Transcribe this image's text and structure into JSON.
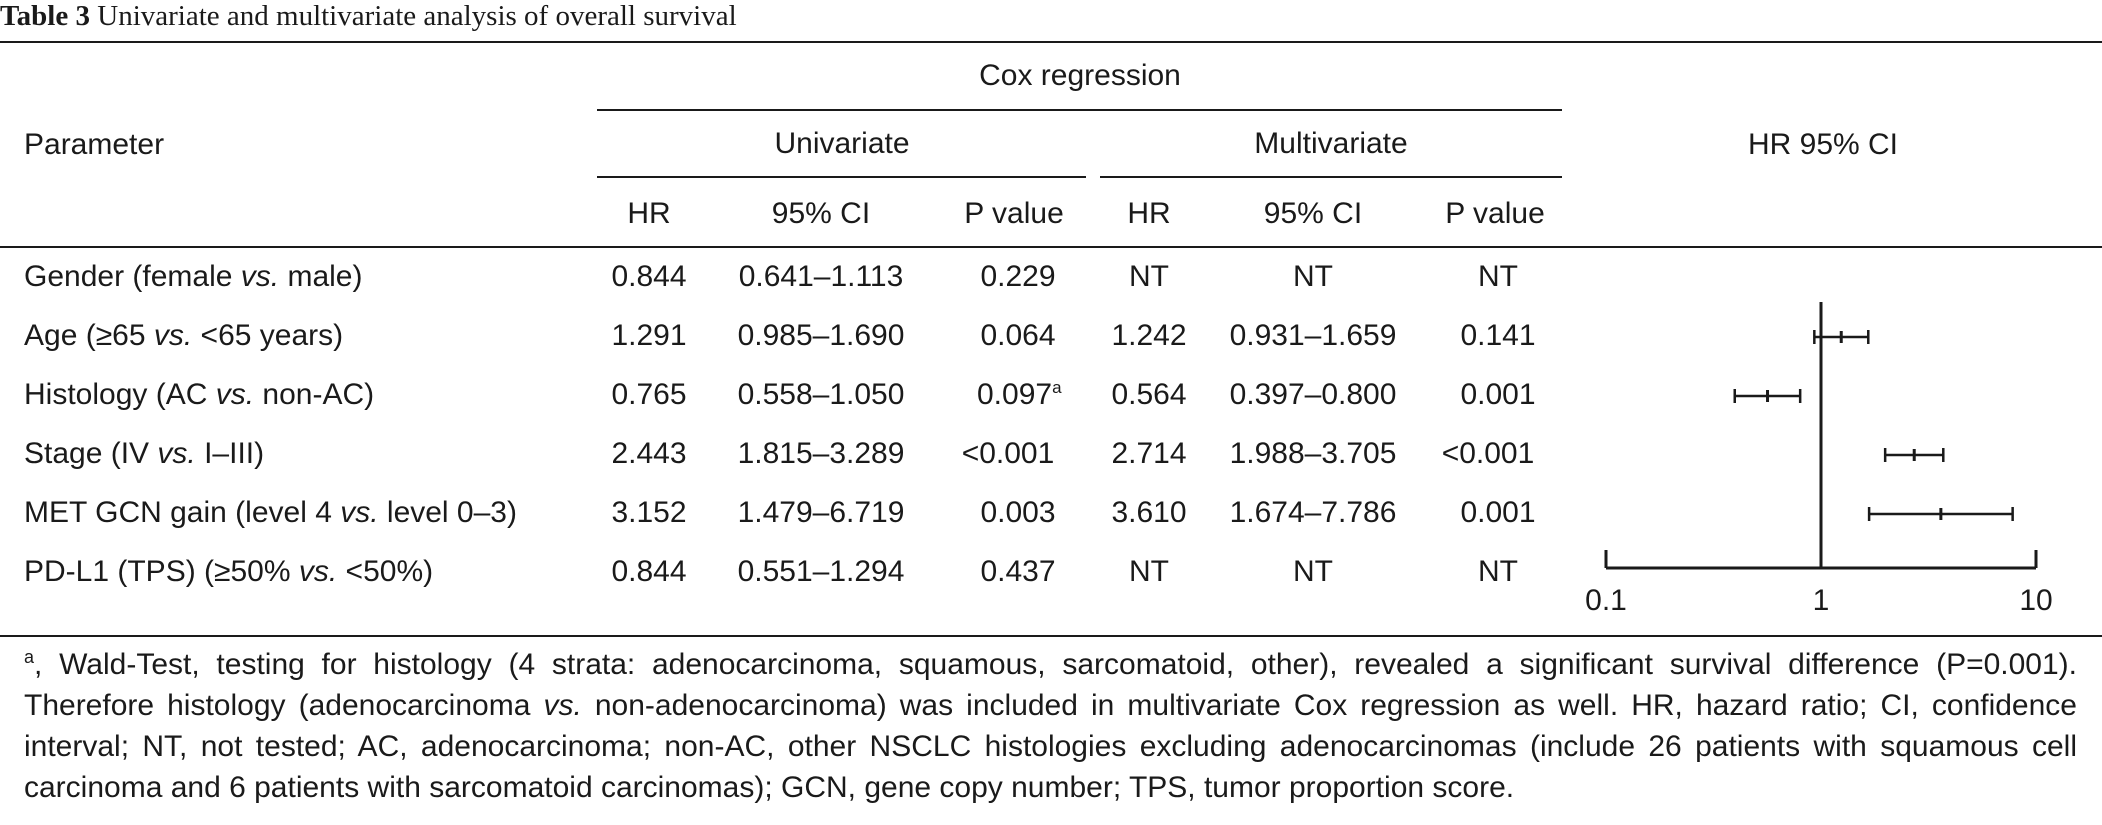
{
  "caption": {
    "label": "Table 3",
    "text": "Univariate and multivariate analysis of overall survival"
  },
  "header": {
    "parameter": "Parameter",
    "cox": "Cox regression",
    "univariate": "Univariate",
    "multivariate": "Multivariate",
    "hr_ci": "HR 95% CI",
    "cols": {
      "hr": "HR",
      "ci": "95% CI",
      "p": "P value"
    }
  },
  "rows": [
    {
      "p1": "Gender (female ",
      "vs": "vs.",
      "p2": " male)",
      "u_hr": "0.844",
      "u_ci": "0.641–1.113",
      "u_p": "0.229",
      "u_p_sup": "",
      "m_hr": "NT",
      "m_ci": "NT",
      "m_p": "NT"
    },
    {
      "p1": "Age (≥65 ",
      "vs": "vs.",
      "p2": " <65 years)",
      "u_hr": "1.291",
      "u_ci": "0.985–1.690",
      "u_p": "0.064",
      "u_p_sup": "",
      "m_hr": "1.242",
      "m_ci": "0.931–1.659",
      "m_p": "0.141"
    },
    {
      "p1": "Histology (AC ",
      "vs": "vs.",
      "p2": " non-AC)",
      "u_hr": "0.765",
      "u_ci": "0.558–1.050",
      "u_p": "0.097",
      "u_p_sup": "a",
      "m_hr": "0.564",
      "m_ci": "0.397–0.800",
      "m_p": "0.001"
    },
    {
      "p1": "Stage (IV ",
      "vs": "vs.",
      "p2": " I–III)",
      "u_hr": "2.443",
      "u_ci": "1.815–3.289",
      "u_p": "<0.001",
      "u_p_sup": "",
      "m_hr": "2.714",
      "m_ci": "1.988–3.705",
      "m_p": "<0.001"
    },
    {
      "p1": "MET GCN gain (level 4 ",
      "vs": "vs.",
      "p2": " level 0–3)",
      "u_hr": "3.152",
      "u_ci": "1.479–6.719",
      "u_p": "0.003",
      "u_p_sup": "",
      "m_hr": "3.610",
      "m_ci": "1.674–7.786",
      "m_p": "0.001"
    },
    {
      "p1": "PD-L1 (TPS) (≥50% ",
      "vs": "vs.",
      "p2": " <50%)",
      "u_hr": "0.844",
      "u_ci": "0.551–1.294",
      "u_p": "0.437",
      "u_p_sup": "",
      "m_hr": "NT",
      "m_ci": "NT",
      "m_p": "NT"
    }
  ],
  "chart_data": {
    "type": "scatter",
    "title": "HR 95% CI",
    "x_scale": "log",
    "xlim": [
      0.1,
      10
    ],
    "x_ticks": [
      "0.1",
      "1",
      "10"
    ],
    "reference_line": 1,
    "series": [
      {
        "category": "Age",
        "hr": 1.242,
        "lower": 0.931,
        "upper": 1.659
      },
      {
        "category": "Histology",
        "hr": 0.564,
        "lower": 0.397,
        "upper": 0.8
      },
      {
        "category": "Stage",
        "hr": 2.714,
        "lower": 1.988,
        "upper": 3.705
      },
      {
        "category": "MET GCN gain",
        "hr": 3.61,
        "lower": 1.674,
        "upper": 7.786
      }
    ]
  },
  "footnote": {
    "sup": "a",
    "t1": ", Wald-Test, testing for histology (4 strata: adenocarcinoma, squamous, sarcomatoid, other), revealed a significant survival difference (P=0.001). Therefore histology (adenocarcinoma ",
    "vs": "vs.",
    "t2": " non-adenocarcinoma) was included in multivariate Cox regression as well. HR, hazard ratio; CI, confidence interval; NT, not tested; AC, adenocarcinoma; non-AC, other NSCLC histologies excluding adenocarcinomas (include 26 patients with squamous cell carcinoma and 6 patients with sarcomatoid carcinomas); GCN, gene copy number; TPS, tumor proportion score."
  }
}
